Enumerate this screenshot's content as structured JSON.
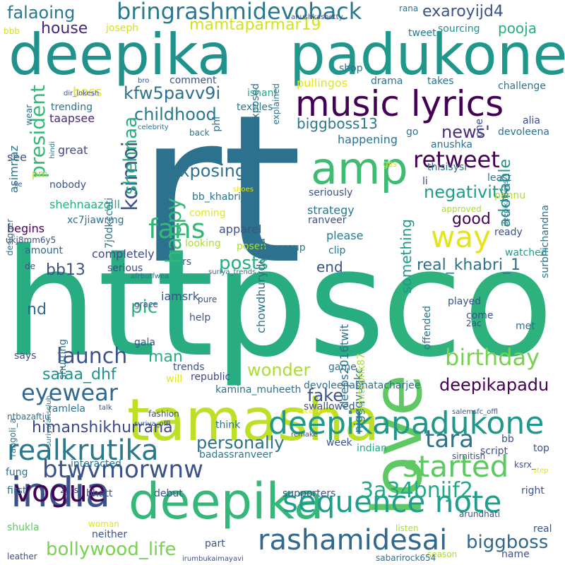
{
  "words": [
    {
      "text": "rt",
      "color": "#2c728e"
    },
    {
      "text": "https",
      "color": "#27ad81"
    },
    {
      "text": "co",
      "color": "#2db27d"
    },
    {
      "text": "deepika",
      "color": "#21918c"
    },
    {
      "text": "padukone",
      "color": "#1f988b"
    },
    {
      "text": "amp",
      "color": "#3fbc73"
    },
    {
      "text": "love",
      "color": "#5ec962"
    },
    {
      "text": "tamasha",
      "color": "#bddf26"
    },
    {
      "text": "india",
      "color": "#3b528b"
    },
    {
      "text": "deepika",
      "color": "#35b779"
    },
    {
      "text": "music lyrics",
      "color": "#440154"
    },
    {
      "text": "sequence note",
      "color": "#1f9e89"
    },
    {
      "text": "deepikapadukone",
      "color": "#1f988b"
    },
    {
      "text": "rashamidesai",
      "color": "#31688e"
    },
    {
      "text": "vogue",
      "color": "#440154"
    },
    {
      "text": "realkrutika",
      "color": "#2a788e"
    },
    {
      "text": "bringrashmidevoback",
      "color": "#2a788e"
    },
    {
      "text": "retweet",
      "color": "#440154"
    },
    {
      "text": "fans",
      "color": "#35b779"
    },
    {
      "text": "way",
      "color": "#e5e419"
    },
    {
      "text": "started",
      "color": "#5ec962"
    },
    {
      "text": "btwvmorwnw",
      "color": "#3b528b"
    },
    {
      "text": "birthday",
      "color": "#7ad151"
    },
    {
      "text": "eyewear",
      "color": "#31688e"
    },
    {
      "text": "launch",
      "color": "#3b528b"
    },
    {
      "text": "tara",
      "color": "#2c728e"
    },
    {
      "text": "3a34bnijf2",
      "color": "#22a884"
    },
    {
      "text": "bollywood_life",
      "color": "#7ad151"
    },
    {
      "text": "biggboss",
      "color": "#31688e"
    },
    {
      "text": "koimoi",
      "color": "#3b528b"
    },
    {
      "text": "president",
      "color": "#35b779"
    },
    {
      "text": "happy",
      "color": "#35b779"
    },
    {
      "text": "shehnaa",
      "color": "#27ad81"
    },
    {
      "text": "childhood",
      "color": "#2a788e"
    },
    {
      "text": "kfw5pavv9i",
      "color": "#2c728e"
    },
    {
      "text": "exposing",
      "color": "#2c728e"
    },
    {
      "text": "negativity",
      "color": "#1f9e89"
    },
    {
      "text": "biggboss13",
      "color": "#2a788e"
    },
    {
      "text": "news'",
      "color": "#472d7b"
    },
    {
      "text": "adorable",
      "color": "#21918c"
    },
    {
      "text": "good",
      "color": "#440154"
    },
    {
      "text": "something",
      "color": "#1f988b"
    },
    {
      "text": "real_khabri_1",
      "color": "#2c728e"
    },
    {
      "text": "posts",
      "color": "#27ad81"
    },
    {
      "text": "end",
      "color": "#3b528b"
    },
    {
      "text": "bb13",
      "color": "#3b528b"
    },
    {
      "text": "pic",
      "color": "#2db27d"
    },
    {
      "text": "nd",
      "color": "#31688e"
    },
    {
      "text": "man",
      "color": "#27ad81"
    },
    {
      "text": "wonder",
      "color": "#addc30"
    },
    {
      "text": "saiaa_dhf",
      "color": "#21918c"
    },
    {
      "text": "fake",
      "color": "#3b528b"
    },
    {
      "text": "deepikapadu",
      "color": "#440154"
    },
    {
      "text": "himanshikhurrana",
      "color": "#3e4989"
    },
    {
      "text": "personally",
      "color": "#2c728e"
    },
    {
      "text": "house",
      "color": "#482878"
    },
    {
      "text": "falaoing",
      "color": "#2a788e"
    },
    {
      "text": "mamtaparmar19",
      "color": "#d2e21b"
    },
    {
      "text": "exaroyijd4",
      "color": "#3b528b"
    },
    {
      "text": "pooja",
      "color": "#27ad81"
    },
    {
      "text": "boss",
      "color": "#e5e419"
    },
    {
      "text": "shehnaazgill",
      "color": "#27ad81"
    },
    {
      "text": "apparel",
      "color": "#3b528b"
    },
    {
      "text": "strategy",
      "color": "#2a788e"
    },
    {
      "text": "xc7jiawrmg",
      "color": "#2c728e"
    },
    {
      "text": "bb_khabri_",
      "color": "#2c728e"
    },
    {
      "text": "trending",
      "color": "#2c728e"
    },
    {
      "text": "taapsee",
      "color": "#482878"
    },
    {
      "text": "great",
      "color": "#3e4989"
    },
    {
      "text": "nobody",
      "color": "#3b528b"
    },
    {
      "text": "pm",
      "color": "#addc30"
    },
    {
      "text": "begins",
      "color": "#440154"
    },
    {
      "text": "amount",
      "color": "#31688e"
    },
    {
      "text": "completely",
      "color": "#3e4989"
    },
    {
      "text": "serious",
      "color": "#3e4989"
    },
    {
      "text": "looking",
      "color": "#addc30"
    },
    {
      "text": "posen",
      "color": "#addc30"
    },
    {
      "text": "group",
      "color": "#2a788e"
    },
    {
      "text": "clip",
      "color": "#2c728e"
    },
    {
      "text": "please",
      "color": "#2a788e"
    },
    {
      "text": "seriously",
      "color": "#3b528b"
    },
    {
      "text": "ranveer",
      "color": "#3b528b"
    },
    {
      "text": "watched",
      "color": "#1f9e89"
    },
    {
      "text": "ready",
      "color": "#3b528b"
    },
    {
      "text": "pannu",
      "color": "#addc30"
    },
    {
      "text": "thisisysr",
      "color": "#2c728e"
    },
    {
      "text": "least",
      "color": "#2a788e"
    },
    {
      "text": "li",
      "color": "#3e4989"
    },
    {
      "text": "coming",
      "color": "#e5e419"
    },
    {
      "text": "anushka",
      "color": "#2c728e"
    },
    {
      "text": "devoleena",
      "color": "#2c728e"
    },
    {
      "text": "alia",
      "color": "#3e4989"
    },
    {
      "text": "challenge",
      "color": "#2c728e"
    },
    {
      "text": "takes",
      "color": "#2c728e"
    },
    {
      "text": "drama",
      "color": "#2c728e"
    },
    {
      "text": "pullingos",
      "color": "#e5e419"
    },
    {
      "text": "shop",
      "color": "#2c728e"
    },
    {
      "text": "sourcing",
      "color": "#21918c"
    },
    {
      "text": "tweet",
      "color": "#2a788e"
    },
    {
      "text": "rana",
      "color": "#2c728e"
    },
    {
      "text": "joseph",
      "color": "#d2e21b"
    },
    {
      "text": "bbb",
      "color": "#d2e21b"
    },
    {
      "text": "comment",
      "color": "#3b528b"
    },
    {
      "text": "ishani",
      "color": "#22a884"
    },
    {
      "text": "textiles",
      "color": "#2a788e"
    },
    {
      "text": "celebrity",
      "color": "#2c728e"
    },
    {
      "text": "back",
      "color": "#2c728e"
    },
    {
      "text": "happening",
      "color": "#2c728e"
    },
    {
      "text": "tr",
      "color": "#2c728e"
    },
    {
      "text": "go",
      "color": "#2c728e"
    },
    {
      "text": "see",
      "color": "#3b528b"
    },
    {
      "text": "de",
      "color": "#3b528b"
    },
    {
      "text": "rs",
      "color": "#3b528b"
    },
    {
      "text": "iamsrk",
      "color": "#3b528b"
    },
    {
      "text": "help",
      "color": "#3b528b"
    },
    {
      "text": "gala",
      "color": "#3b528b"
    },
    {
      "text": "trends",
      "color": "#3b528b"
    },
    {
      "text": "republic",
      "color": "#3e4989"
    },
    {
      "text": "kamina_muheeth",
      "color": "#2c728e"
    },
    {
      "text": "game",
      "color": "#2c728e"
    },
    {
      "text": "devoleenabhatacharjee",
      "color": "#2c728e"
    },
    {
      "text": "swallowed",
      "color": "#3b528b"
    },
    {
      "text": "think",
      "color": "#2c728e"
    },
    {
      "text": "week",
      "color": "#3b528b"
    },
    {
      "text": "indian",
      "color": "#22a884"
    },
    {
      "text": "bb",
      "color": "#3b528b"
    },
    {
      "text": "script",
      "color": "#3b528b"
    },
    {
      "text": "top",
      "color": "#3b528b"
    },
    {
      "text": "ksrx_",
      "color": "#3b528b"
    },
    {
      "text": "right",
      "color": "#3b528b"
    },
    {
      "text": "real",
      "color": "#3b528b"
    },
    {
      "text": "name",
      "color": "#3b528b"
    },
    {
      "text": "season",
      "color": "#addc30"
    },
    {
      "text": "listen",
      "color": "#addc30"
    },
    {
      "text": "neither",
      "color": "#3b528b"
    },
    {
      "text": "part",
      "color": "#3b528b"
    },
    {
      "text": "leather",
      "color": "#3b528b"
    },
    {
      "text": "shukla",
      "color": "#5ec962"
    },
    {
      "text": "first",
      "color": "#2c728e"
    },
    {
      "text": "fung",
      "color": "#2c728e"
    },
    {
      "text": "interacted",
      "color": "#2a788e"
    },
    {
      "text": "badassranveer",
      "color": "#2a788e"
    },
    {
      "text": "supporters",
      "color": "#3b528b"
    },
    {
      "text": "bhatt",
      "color": "#3b528b"
    },
    {
      "text": "debut",
      "color": "#3b528b"
    },
    {
      "text": "2yrs",
      "color": "#3e4989"
    },
    {
      "text": "woman",
      "color": "#e5e419"
    },
    {
      "text": "played",
      "color": "#3b528b"
    },
    {
      "text": "come",
      "color": "#3b528b"
    },
    {
      "text": "2ac",
      "color": "#3b528b"
    },
    {
      "text": "met",
      "color": "#2c728e"
    },
    {
      "text": "says",
      "color": "#3b528b"
    },
    {
      "text": "fashion",
      "color": "#3b528b"
    },
    {
      "text": "will",
      "color": "#e5e419"
    },
    {
      "text": "pure",
      "color": "#3b528b"
    },
    {
      "text": "dir_lokesh",
      "color": "#3b528b"
    },
    {
      "text": "asimriaz",
      "color": "#2c728e"
    },
    {
      "text": "wear",
      "color": "#2c728e"
    },
    {
      "text": "hindi",
      "color": "#2c728e"
    },
    {
      "text": "ke",
      "color": "#3b528b"
    },
    {
      "text": "designer",
      "color": "#2c728e"
    },
    {
      "text": "ukj8mm6y5",
      "color": "#3b528b"
    },
    {
      "text": "afrbutfwea",
      "color": "#2c728e"
    },
    {
      "text": "suriya_trends",
      "color": "#2c728e"
    },
    {
      "text": "suriyafansclub",
      "color": "#2c728e"
    },
    {
      "text": "shutting",
      "color": "#2c728e"
    },
    {
      "text": "rangoli_a",
      "color": "#2c728e"
    },
    {
      "text": "ntbazaftiu",
      "color": "#2c728e"
    },
    {
      "text": "ramlela",
      "color": "#2c728e"
    },
    {
      "text": "talk",
      "color": "#3b528b"
    },
    {
      "text": "suriya_offl",
      "color": "#3b528b"
    },
    {
      "text": "remake",
      "color": "#3b528b"
    },
    {
      "text": "excellence",
      "color": "#e5e419"
    },
    {
      "text": "salemsfc_offl",
      "color": "#3b528b"
    },
    {
      "text": "sirnitish",
      "color": "#3b528b"
    },
    {
      "text": "step",
      "color": "#e5e419"
    },
    {
      "text": "arundhati",
      "color": "#3b528b"
    },
    {
      "text": "sabarirock654",
      "color": "#2c728e"
    },
    {
      "text": "irumbukaimayavi",
      "color": "#3b528b"
    },
    {
      "text": "grace",
      "color": "#3b528b"
    },
    {
      "text": "bro",
      "color": "#3b528b"
    },
    {
      "text": "anushkashetty",
      "color": "#3b528b"
    },
    {
      "text": "explained",
      "color": "#2c728e"
    },
    {
      "text": "exposed",
      "color": "#2c728e"
    },
    {
      "text": "phi",
      "color": "#2c728e"
    },
    {
      "text": "one",
      "color": "#3b528b"
    },
    {
      "text": "gss",
      "color": "#e5e419"
    },
    {
      "text": "deepikalooks",
      "color": "#2c728e"
    },
    {
      "text": "surbhichandna",
      "color": "#2c728e"
    },
    {
      "text": "approved",
      "color": "#addc30"
    },
    {
      "text": "shoes",
      "color": "#e5e419"
    },
    {
      "text": "7j0dkccoti",
      "color": "#2c728e"
    },
    {
      "text": "chowdhurydurga",
      "color": "#2c728e"
    },
    {
      "text": "deeps2016twit",
      "color": "#2c728e"
    },
    {
      "text": "niggqvuqkc",
      "color": "#2c728e"
    },
    {
      "text": "amitabhk87",
      "color": "#addc30"
    },
    {
      "text": "offended",
      "color": "#2c728e"
    }
  ]
}
